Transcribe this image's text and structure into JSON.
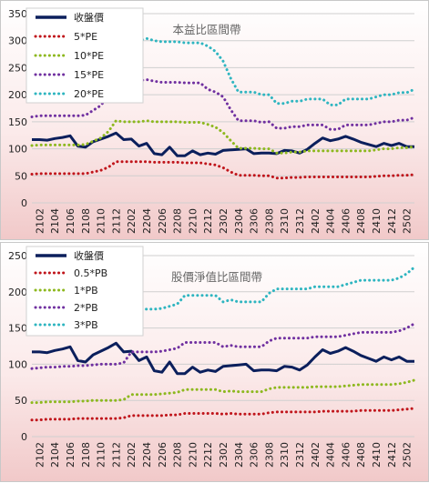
{
  "chart_data": [
    {
      "type": "line",
      "title": "本益比區間帶",
      "ylim": [
        0,
        350
      ],
      "yticks": [
        0,
        50,
        100,
        150,
        200,
        250,
        300,
        350
      ],
      "x": [
        "2101",
        "2102",
        "2103",
        "2104",
        "2105",
        "2106",
        "2107",
        "2108",
        "2109",
        "2110",
        "2111",
        "2112",
        "2201",
        "2202",
        "2203",
        "2204",
        "2205",
        "2206",
        "2207",
        "2208",
        "2209",
        "2210",
        "2211",
        "2212",
        "2301",
        "2302",
        "2303",
        "2304",
        "2305",
        "2306",
        "2307",
        "2308",
        "2309",
        "2310",
        "2311",
        "2312",
        "2401",
        "2402",
        "2403",
        "2404",
        "2405",
        "2406",
        "2407",
        "2408",
        "2409",
        "2410",
        "2411",
        "2412",
        "2501",
        "2502",
        "2503"
      ],
      "xtick_labels": [
        "2102",
        "2104",
        "2106",
        "2108",
        "2110",
        "2112",
        "2202",
        "2204",
        "2206",
        "2208",
        "2210",
        "2212",
        "2302",
        "2304",
        "2306",
        "2308",
        "2310",
        "2312",
        "2402",
        "2404",
        "2406",
        "2408",
        "2410",
        "2412",
        "2502"
      ],
      "grid": true,
      "legend_position": "top-left",
      "series": [
        {
          "name": "收盤價",
          "color": "#0b1f5c",
          "style": "solid",
          "values": [
            117,
            117,
            116,
            119,
            121,
            124,
            105,
            103,
            113,
            118,
            123,
            129,
            117,
            118,
            105,
            110,
            91,
            89,
            103,
            87,
            87,
            96,
            89,
            92,
            90,
            97,
            98,
            99,
            100,
            91,
            92,
            92,
            91,
            97,
            96,
            92,
            99,
            110,
            120,
            115,
            118,
            123,
            118,
            112,
            108,
            104,
            110,
            106,
            110,
            104,
            104
          ]
        },
        {
          "name": "5*PE",
          "color": "#c0151b",
          "style": "dotted",
          "values": [
            53,
            54,
            54,
            54,
            54,
            54,
            54,
            54,
            57,
            60,
            66,
            76,
            76,
            76,
            76,
            76,
            75,
            75,
            75,
            75,
            74,
            74,
            74,
            72,
            70,
            65,
            57,
            51,
            51,
            51,
            50,
            50,
            46,
            46,
            47,
            47,
            48,
            48,
            48,
            48,
            48,
            48,
            48,
            48,
            48,
            49,
            50,
            50,
            51,
            51,
            52
          ]
        },
        {
          "name": "10*PE",
          "color": "#8db81e",
          "style": "dotted",
          "values": [
            106,
            107,
            107,
            107,
            107,
            107,
            107,
            108,
            114,
            120,
            132,
            152,
            150,
            150,
            150,
            152,
            150,
            150,
            150,
            150,
            149,
            149,
            149,
            145,
            140,
            130,
            115,
            101,
            101,
            101,
            100,
            100,
            92,
            92,
            94,
            94,
            96,
            96,
            96,
            96,
            96,
            96,
            96,
            96,
            96,
            98,
            100,
            100,
            102,
            102,
            104
          ]
        },
        {
          "name": "15*PE",
          "color": "#7030a0",
          "style": "dotted",
          "values": [
            159,
            161,
            161,
            161,
            161,
            161,
            161,
            162,
            171,
            180,
            198,
            220,
            224,
            226,
            226,
            228,
            225,
            223,
            223,
            223,
            222,
            222,
            222,
            210,
            205,
            196,
            172,
            152,
            152,
            152,
            149,
            150,
            138,
            138,
            141,
            141,
            144,
            144,
            144,
            136,
            136,
            144,
            144,
            144,
            144,
            147,
            150,
            150,
            153,
            153,
            158
          ]
        },
        {
          "name": "20*PE",
          "color": "#2eb5c0",
          "style": "dotted",
          "values": [
            212,
            214,
            214,
            214,
            215,
            216,
            214,
            216,
            228,
            240,
            264,
            296,
            298,
            300,
            300,
            304,
            300,
            298,
            298,
            298,
            296,
            296,
            296,
            290,
            280,
            262,
            230,
            205,
            205,
            205,
            200,
            200,
            184,
            184,
            188,
            188,
            192,
            192,
            192,
            181,
            181,
            192,
            192,
            192,
            192,
            196,
            200,
            200,
            204,
            204,
            210
          ]
        }
      ]
    },
    {
      "type": "line",
      "title": "股價淨值比區間帶",
      "ylim": [
        0,
        250
      ],
      "yticks": [
        0,
        50,
        100,
        150,
        200,
        250
      ],
      "x": [
        "2101",
        "2102",
        "2103",
        "2104",
        "2105",
        "2106",
        "2107",
        "2108",
        "2109",
        "2110",
        "2111",
        "2112",
        "2201",
        "2202",
        "2203",
        "2204",
        "2205",
        "2206",
        "2207",
        "2208",
        "2209",
        "2210",
        "2211",
        "2212",
        "2301",
        "2302",
        "2303",
        "2304",
        "2305",
        "2306",
        "2307",
        "2308",
        "2309",
        "2310",
        "2311",
        "2312",
        "2401",
        "2402",
        "2403",
        "2404",
        "2405",
        "2406",
        "2407",
        "2408",
        "2409",
        "2410",
        "2411",
        "2412",
        "2501",
        "2502",
        "2503"
      ],
      "xtick_labels": [
        "2102",
        "2104",
        "2106",
        "2108",
        "2110",
        "2112",
        "2202",
        "2204",
        "2206",
        "2208",
        "2210",
        "2212",
        "2302",
        "2304",
        "2306",
        "2308",
        "2310",
        "2312",
        "2402",
        "2404",
        "2406",
        "2408",
        "2410",
        "2412",
        "2502"
      ],
      "grid": true,
      "legend_position": "top-left",
      "series": [
        {
          "name": "收盤價",
          "color": "#0b1f5c",
          "style": "solid",
          "values": [
            117,
            117,
            116,
            119,
            121,
            124,
            105,
            103,
            113,
            118,
            123,
            129,
            117,
            118,
            105,
            110,
            91,
            89,
            103,
            87,
            87,
            96,
            89,
            92,
            90,
            97,
            98,
            99,
            100,
            91,
            92,
            92,
            91,
            97,
            96,
            92,
            99,
            110,
            120,
            115,
            118,
            123,
            118,
            112,
            108,
            104,
            110,
            106,
            110,
            104,
            104
          ]
        },
        {
          "name": "0.5*PB",
          "color": "#c0151b",
          "style": "dotted",
          "values": [
            23,
            23,
            24,
            24,
            24,
            24,
            25,
            25,
            25,
            25,
            25,
            25,
            26,
            29,
            29,
            29,
            29,
            29,
            30,
            30,
            32,
            32,
            32,
            32,
            32,
            31,
            32,
            31,
            31,
            31,
            31,
            33,
            34,
            34,
            34,
            34,
            34,
            34,
            35,
            35,
            35,
            35,
            35,
            36,
            36,
            36,
            36,
            36,
            37,
            38,
            39
          ]
        },
        {
          "name": "1*PB",
          "color": "#8db81e",
          "style": "dotted",
          "values": [
            47,
            47,
            48,
            48,
            48,
            48,
            49,
            49,
            50,
            50,
            50,
            50,
            51,
            58,
            58,
            58,
            58,
            59,
            60,
            61,
            65,
            65,
            65,
            65,
            65,
            62,
            63,
            62,
            62,
            62,
            62,
            66,
            68,
            68,
            68,
            68,
            68,
            69,
            69,
            69,
            69,
            70,
            71,
            72,
            72,
            72,
            72,
            72,
            73,
            75,
            78
          ]
        },
        {
          "name": "2*PB",
          "color": "#7030a0",
          "style": "dotted",
          "values": [
            94,
            95,
            96,
            96,
            97,
            97,
            98,
            98,
            99,
            100,
            100,
            100,
            102,
            117,
            117,
            117,
            117,
            118,
            120,
            122,
            130,
            130,
            130,
            130,
            130,
            124,
            126,
            124,
            124,
            124,
            124,
            132,
            136,
            136,
            136,
            136,
            136,
            138,
            138,
            138,
            138,
            140,
            142,
            144,
            144,
            144,
            144,
            144,
            146,
            150,
            156
          ]
        },
        {
          "name": "3*PB",
          "color": "#2eb5c0",
          "style": "dotted",
          "values": [
            141,
            142,
            144,
            144,
            146,
            146,
            147,
            148,
            149,
            150,
            150,
            150,
            154,
            176,
            176,
            176,
            176,
            177,
            180,
            183,
            195,
            195,
            195,
            195,
            195,
            186,
            189,
            186,
            186,
            186,
            186,
            198,
            204,
            204,
            204,
            204,
            204,
            207,
            207,
            207,
            207,
            210,
            213,
            216,
            216,
            216,
            216,
            216,
            219,
            225,
            234
          ]
        }
      ]
    }
  ]
}
